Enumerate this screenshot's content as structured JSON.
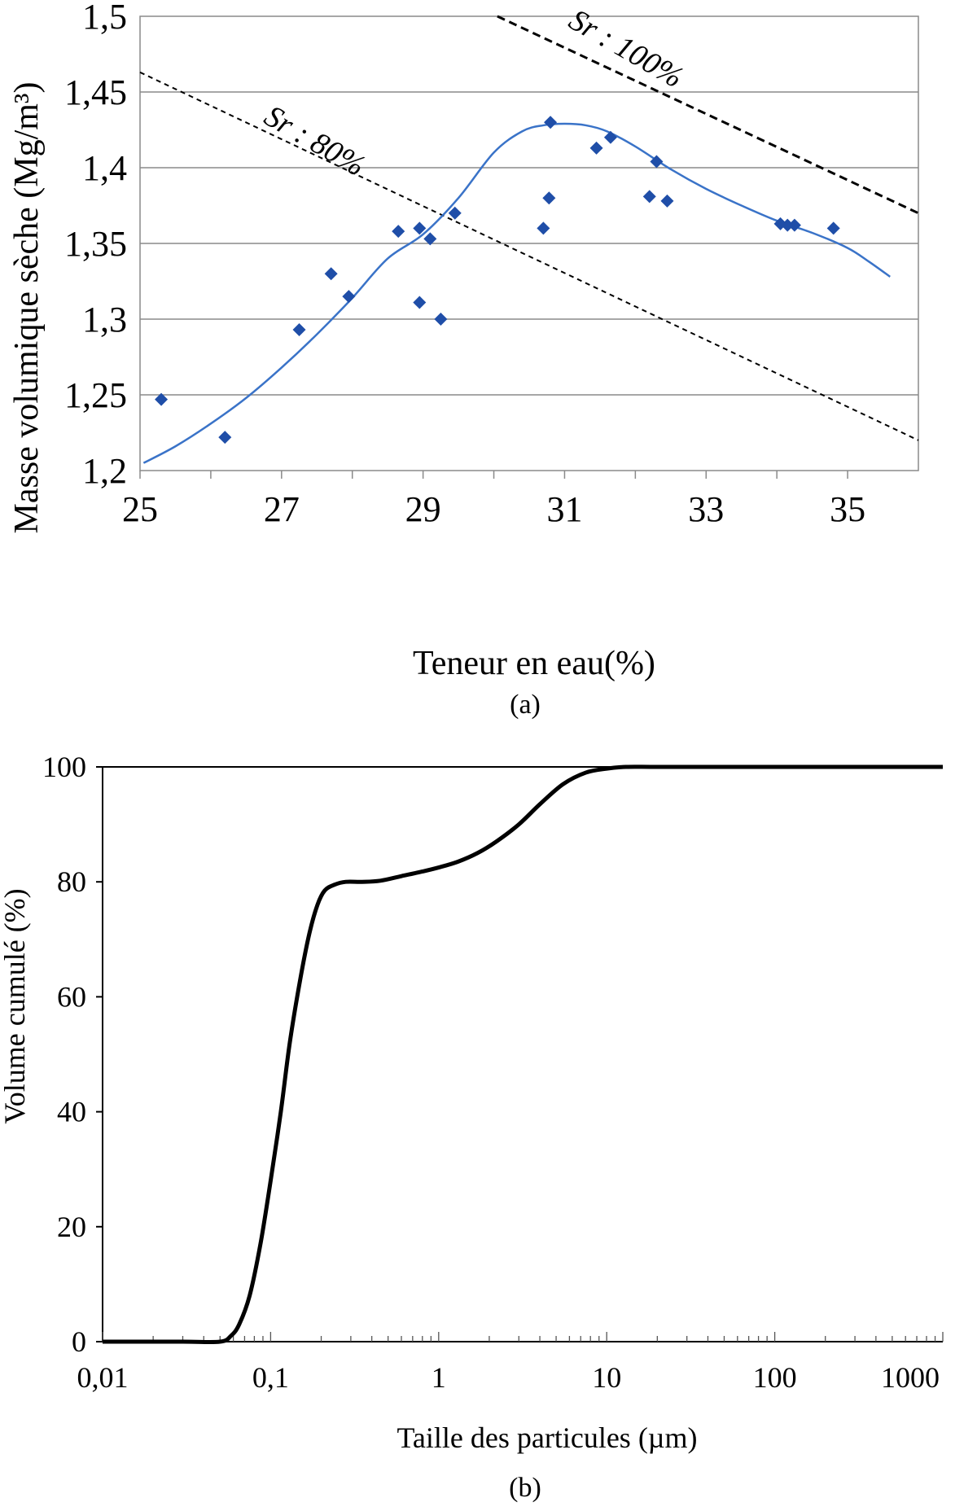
{
  "chart_data": [
    {
      "type": "scatter",
      "caption": "(a)",
      "xlabel": "Teneur en eau(%)",
      "ylabel": "Masse volumique sèche (Mg/m³)",
      "xlim": [
        25,
        36
      ],
      "ylim": [
        1.2,
        1.5
      ],
      "xticks": [
        25,
        27,
        29,
        31,
        33,
        35
      ],
      "xtick_labels": [
        "25",
        "27",
        "29",
        "31",
        "33",
        "35"
      ],
      "yticks": [
        1.2,
        1.25,
        1.3,
        1.35,
        1.4,
        1.45,
        1.5
      ],
      "ytick_labels": [
        "1,2",
        "1,25",
        "1,3",
        "1,35",
        "1,4",
        "1,45",
        "1,5"
      ],
      "grid": "horizontal",
      "series": [
        {
          "kind": "points",
          "marker": "diamond",
          "color": "#1f4ea8",
          "x": [
            25.3,
            26.2,
            27.25,
            27.7,
            27.95,
            28.65,
            28.95,
            28.95,
            29.1,
            29.25,
            29.45,
            30.7,
            30.78,
            30.8,
            31.45,
            31.65,
            32.2,
            32.3,
            32.45,
            34.05,
            34.15,
            34.25,
            34.8
          ],
          "y": [
            1.247,
            1.222,
            1.293,
            1.33,
            1.315,
            1.358,
            1.36,
            1.311,
            1.353,
            1.3,
            1.37,
            1.36,
            1.38,
            1.43,
            1.413,
            1.42,
            1.381,
            1.404,
            1.378,
            1.363,
            1.362,
            1.362,
            1.36
          ]
        },
        {
          "kind": "line",
          "color": "#3a73c8",
          "x": [
            25.05,
            25.5,
            26,
            26.5,
            27,
            27.5,
            28,
            28.5,
            29,
            29.5,
            30,
            30.4,
            30.7,
            31.0,
            31.3,
            31.6,
            32,
            32.5,
            33,
            33.5,
            34,
            34.5,
            35,
            35.3,
            35.6
          ],
          "y": [
            1.205,
            1.216,
            1.231,
            1.248,
            1.268,
            1.29,
            1.314,
            1.34,
            1.356,
            1.38,
            1.41,
            1.424,
            1.428,
            1.429,
            1.428,
            1.424,
            1.414,
            1.399,
            1.386,
            1.375,
            1.365,
            1.357,
            1.347,
            1.338,
            1.328
          ]
        },
        {
          "kind": "line",
          "dash": "long",
          "color": "#000000",
          "x": [
            30.05,
            36.0
          ],
          "y": [
            1.5,
            1.37
          ]
        },
        {
          "kind": "line",
          "dash": "short",
          "color": "#000000",
          "x": [
            25.0,
            36.0
          ],
          "y": [
            1.463,
            1.22
          ]
        }
      ],
      "annotations": [
        {
          "text": "Sr : 100%",
          "x": 31.8,
          "y": 1.473,
          "angle": 30
        },
        {
          "text": "Sr : 80%",
          "x": 27.4,
          "y": 1.412,
          "angle": 30
        }
      ]
    },
    {
      "type": "line",
      "caption": "(b)",
      "xlabel": "Taille des particules (µm)",
      "ylabel": "Volume cumulé (%)",
      "xscale": "log",
      "xlim": [
        0.01,
        1000
      ],
      "ylim": [
        0,
        100
      ],
      "xticks": [
        0.01,
        0.1,
        1,
        10,
        100,
        1000
      ],
      "xtick_labels": [
        "0,01",
        "0,1",
        "1",
        "10",
        "100",
        "1000"
      ],
      "yticks": [
        0,
        20,
        40,
        60,
        80,
        100
      ],
      "ytick_labels": [
        "0",
        "20",
        "40",
        "60",
        "80",
        "100"
      ],
      "grid": "none",
      "series": [
        {
          "color": "#000000",
          "x": [
            0.01,
            0.03,
            0.05,
            0.058,
            0.065,
            0.075,
            0.087,
            0.1,
            0.115,
            0.13,
            0.15,
            0.17,
            0.19,
            0.21,
            0.24,
            0.28,
            0.35,
            0.45,
            0.6,
            0.8,
            1.0,
            1.3,
            1.7,
            2.2,
            3.0,
            4.0,
            5.5,
            7.5,
            10,
            13,
            20,
            50,
            100,
            1000
          ],
          "y": [
            0,
            0,
            0,
            1,
            3,
            8,
            17,
            28,
            40,
            52,
            63,
            71,
            76,
            78.5,
            79.5,
            80,
            80,
            80.2,
            81,
            81.8,
            82.5,
            83.5,
            85,
            87,
            90,
            93.5,
            97,
            99,
            99.7,
            100,
            100,
            100,
            100,
            100
          ]
        }
      ]
    }
  ]
}
